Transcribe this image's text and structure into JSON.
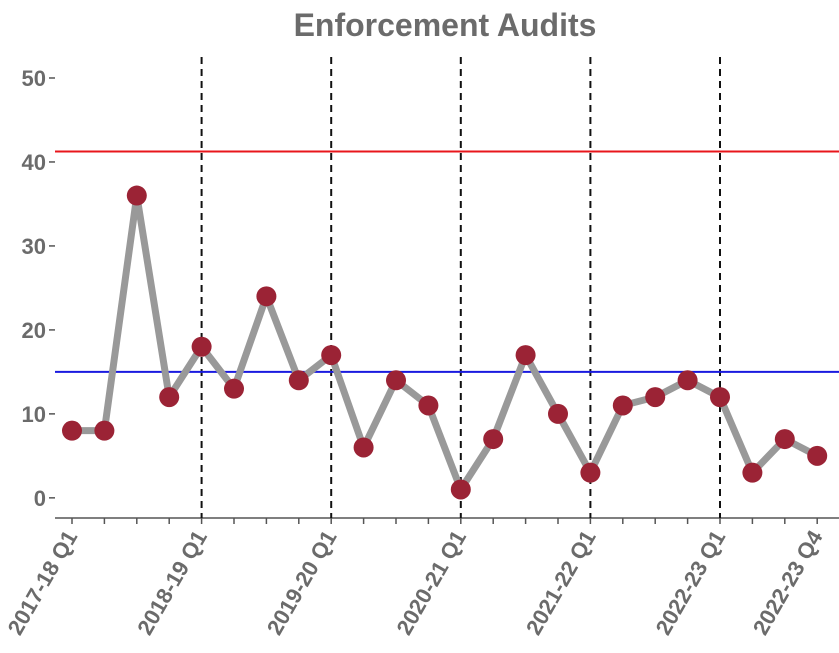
{
  "chart_data": {
    "type": "line",
    "title": "Enforcement Audits",
    "categories": [
      "2017-18 Q1",
      null,
      null,
      null,
      "2018-19 Q1",
      null,
      null,
      null,
      "2019-20 Q1",
      null,
      null,
      null,
      "2020-21 Q1",
      null,
      null,
      null,
      "2021-22 Q1",
      null,
      null,
      null,
      "2022-23 Q1",
      null,
      null,
      "2022-23 Q4"
    ],
    "series": [
      {
        "name": "Enforcement Audits",
        "line_color": "#999999",
        "color": "#9b2335",
        "values": [
          8,
          8,
          36,
          12,
          18,
          13,
          24,
          14,
          17,
          6,
          14,
          11,
          1,
          7,
          17,
          10,
          3,
          11,
          12,
          14,
          12,
          3,
          7,
          5
        ]
      }
    ],
    "ylim": [
      -2.4,
      52.5
    ],
    "yticks": [
      0,
      10,
      20,
      30,
      40,
      50
    ],
    "hlines": [
      {
        "value": 41.25,
        "color": "#e8161b"
      },
      {
        "value": 15,
        "color": "#1a1adf"
      }
    ],
    "vlines": [
      4,
      8,
      12,
      16,
      20
    ]
  }
}
